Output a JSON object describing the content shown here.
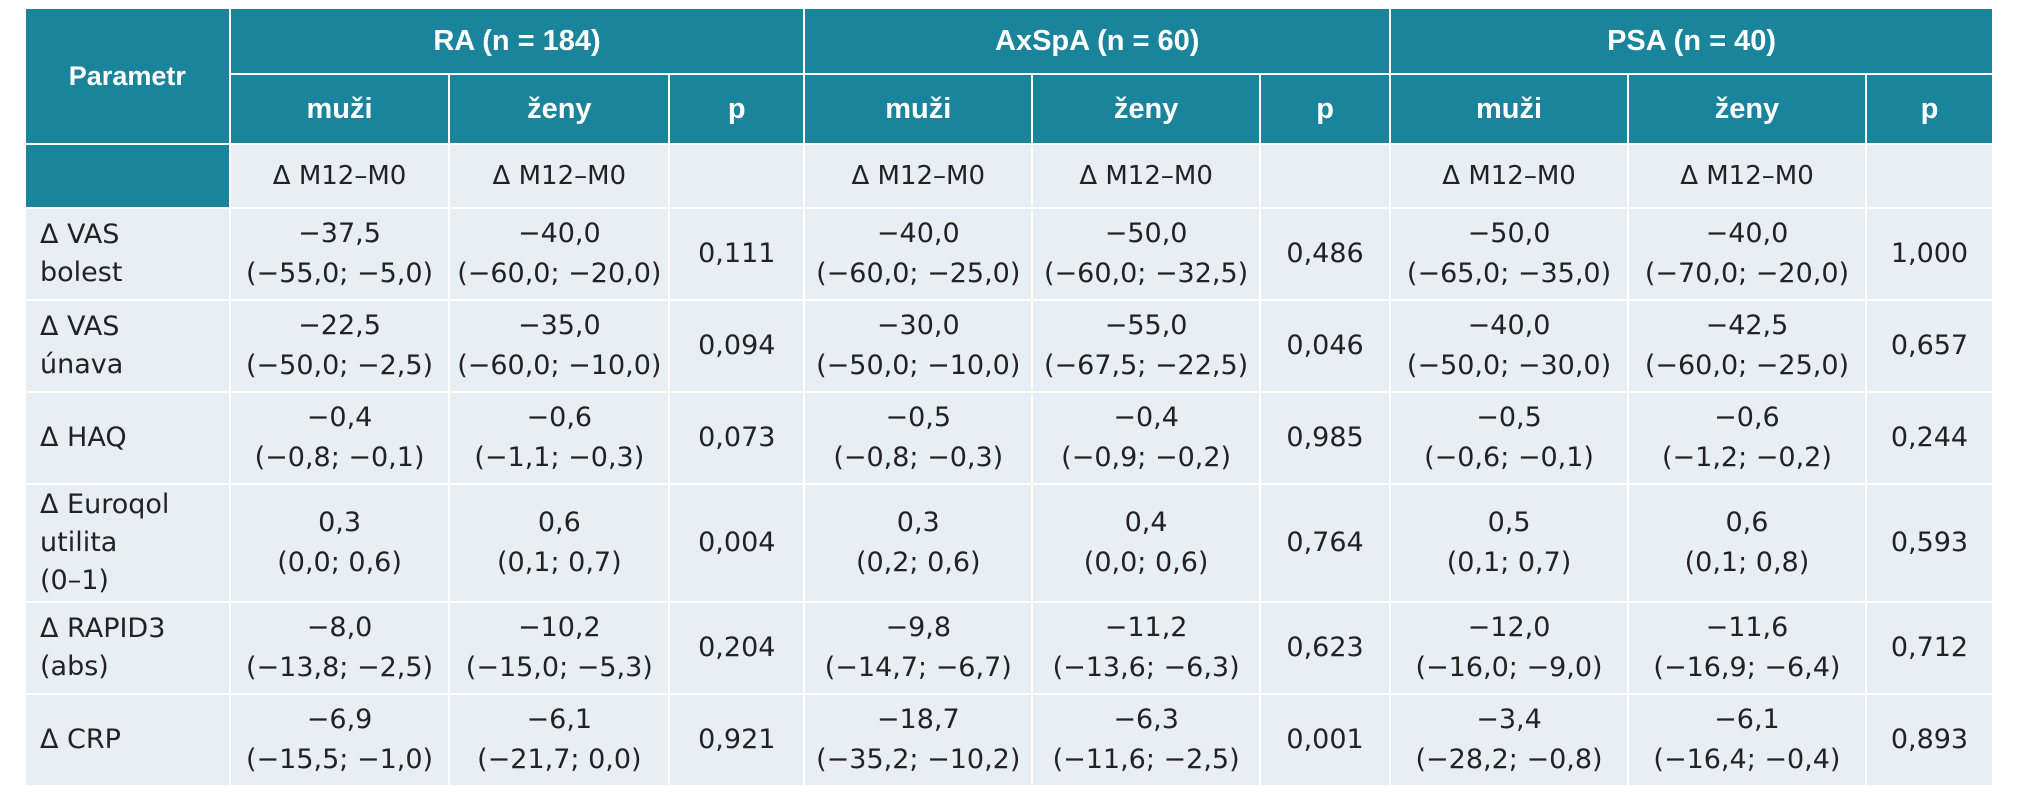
{
  "table": {
    "param_header": "Parametr",
    "groups": [
      {
        "label": "RA (n = 184)"
      },
      {
        "label": "AxSpA (n = 60)"
      },
      {
        "label": "PSA (n = 40)"
      }
    ],
    "subheaders": [
      "muži",
      "ženy",
      "p",
      "muži",
      "ženy",
      "p",
      "muži",
      "ženy",
      "p"
    ],
    "delta_row": [
      "Δ M12–M0",
      "Δ M12–M0",
      "",
      "Δ M12–M0",
      "Δ M12–M0",
      "",
      "Δ M12–M0",
      "Δ M12–M0",
      ""
    ],
    "rows": [
      {
        "label": [
          "Δ VAS",
          "bolest"
        ],
        "cells": [
          {
            "v": "−37,5",
            "ci": "(−55,0; −5,0)"
          },
          {
            "v": "−40,0",
            "ci": "(−60,0; −20,0)"
          },
          {
            "p": "0,111"
          },
          {
            "v": "−40,0",
            "ci": "(−60,0; −25,0)"
          },
          {
            "v": "−50,0",
            "ci": "(−60,0; −32,5)"
          },
          {
            "p": "0,486"
          },
          {
            "v": "−50,0",
            "ci": "(−65,0; −35,0)"
          },
          {
            "v": "−40,0",
            "ci": "(−70,0; −20,0)"
          },
          {
            "p": "1,000"
          }
        ]
      },
      {
        "label": [
          "Δ VAS",
          "únava"
        ],
        "cells": [
          {
            "v": "−22,5",
            "ci": "(−50,0; −2,5)"
          },
          {
            "v": "−35,0",
            "ci": "(−60,0; −10,0)"
          },
          {
            "p": "0,094"
          },
          {
            "v": "−30,0",
            "ci": "(−50,0; −10,0)"
          },
          {
            "v": "−55,0",
            "ci": "(−67,5; −22,5)"
          },
          {
            "p": "0,046"
          },
          {
            "v": "−40,0",
            "ci": "(−50,0; −30,0)"
          },
          {
            "v": "−42,5",
            "ci": "(−60,0; −25,0)"
          },
          {
            "p": "0,657"
          }
        ]
      },
      {
        "label": [
          "Δ HAQ"
        ],
        "cells": [
          {
            "v": "−0,4",
            "ci": "(−0,8; −0,1)"
          },
          {
            "v": "−0,6",
            "ci": "(−1,1; −0,3)"
          },
          {
            "p": "0,073"
          },
          {
            "v": "−0,5",
            "ci": "(−0,8; −0,3)"
          },
          {
            "v": "−0,4",
            "ci": "(−0,9; −0,2)"
          },
          {
            "p": "0,985"
          },
          {
            "v": "−0,5",
            "ci": "(−0,6; −0,1)"
          },
          {
            "v": "−0,6",
            "ci": "(−1,2; −0,2)"
          },
          {
            "p": "0,244"
          }
        ]
      },
      {
        "label": [
          "Δ Euroqol",
          "utilita",
          "(0–1)"
        ],
        "cells": [
          {
            "v": "0,3",
            "ci": "(0,0; 0,6)"
          },
          {
            "v": "0,6",
            "ci": "(0,1; 0,7)"
          },
          {
            "p": "0,004"
          },
          {
            "v": "0,3",
            "ci": "(0,2; 0,6)"
          },
          {
            "v": "0,4",
            "ci": "(0,0; 0,6)"
          },
          {
            "p": "0,764"
          },
          {
            "v": "0,5",
            "ci": "(0,1; 0,7)"
          },
          {
            "v": "0,6",
            "ci": "(0,1; 0,8)"
          },
          {
            "p": "0,593"
          }
        ]
      },
      {
        "label": [
          "Δ RAPID3",
          "(abs)"
        ],
        "cells": [
          {
            "v": "−8,0",
            "ci": "(−13,8; −2,5)"
          },
          {
            "v": "−10,2",
            "ci": "(−15,0; −5,3)"
          },
          {
            "p": "0,204"
          },
          {
            "v": "−9,8",
            "ci": "(−14,7; −6,7)"
          },
          {
            "v": "−11,2",
            "ci": "(−13,6; −6,3)"
          },
          {
            "p": "0,623"
          },
          {
            "v": "−12,0",
            "ci": "(−16,0; −9,0)"
          },
          {
            "v": "−11,6",
            "ci": "(−16,9; −6,4)"
          },
          {
            "p": "0,712"
          }
        ]
      },
      {
        "label": [
          "Δ CRP"
        ],
        "cells": [
          {
            "v": "−6,9",
            "ci": "(−15,5; −1,0)"
          },
          {
            "v": "−6,1",
            "ci": "(−21,7; 0,0)"
          },
          {
            "p": "0,921"
          },
          {
            "v": "−18,7",
            "ci": "(−35,2; −10,2)"
          },
          {
            "v": "−6,3",
            "ci": "(−11,6; −2,5)"
          },
          {
            "p": "0,001"
          },
          {
            "v": "−3,4",
            "ci": "(−28,2; −0,8)"
          },
          {
            "v": "−6,1",
            "ci": "(−16,4; −0,4)"
          },
          {
            "p": "0,893"
          }
        ]
      }
    ]
  },
  "colors": {
    "header_bg": "#19849c",
    "cell_bg": "#e9eef5",
    "header_text": "#ffffff"
  }
}
